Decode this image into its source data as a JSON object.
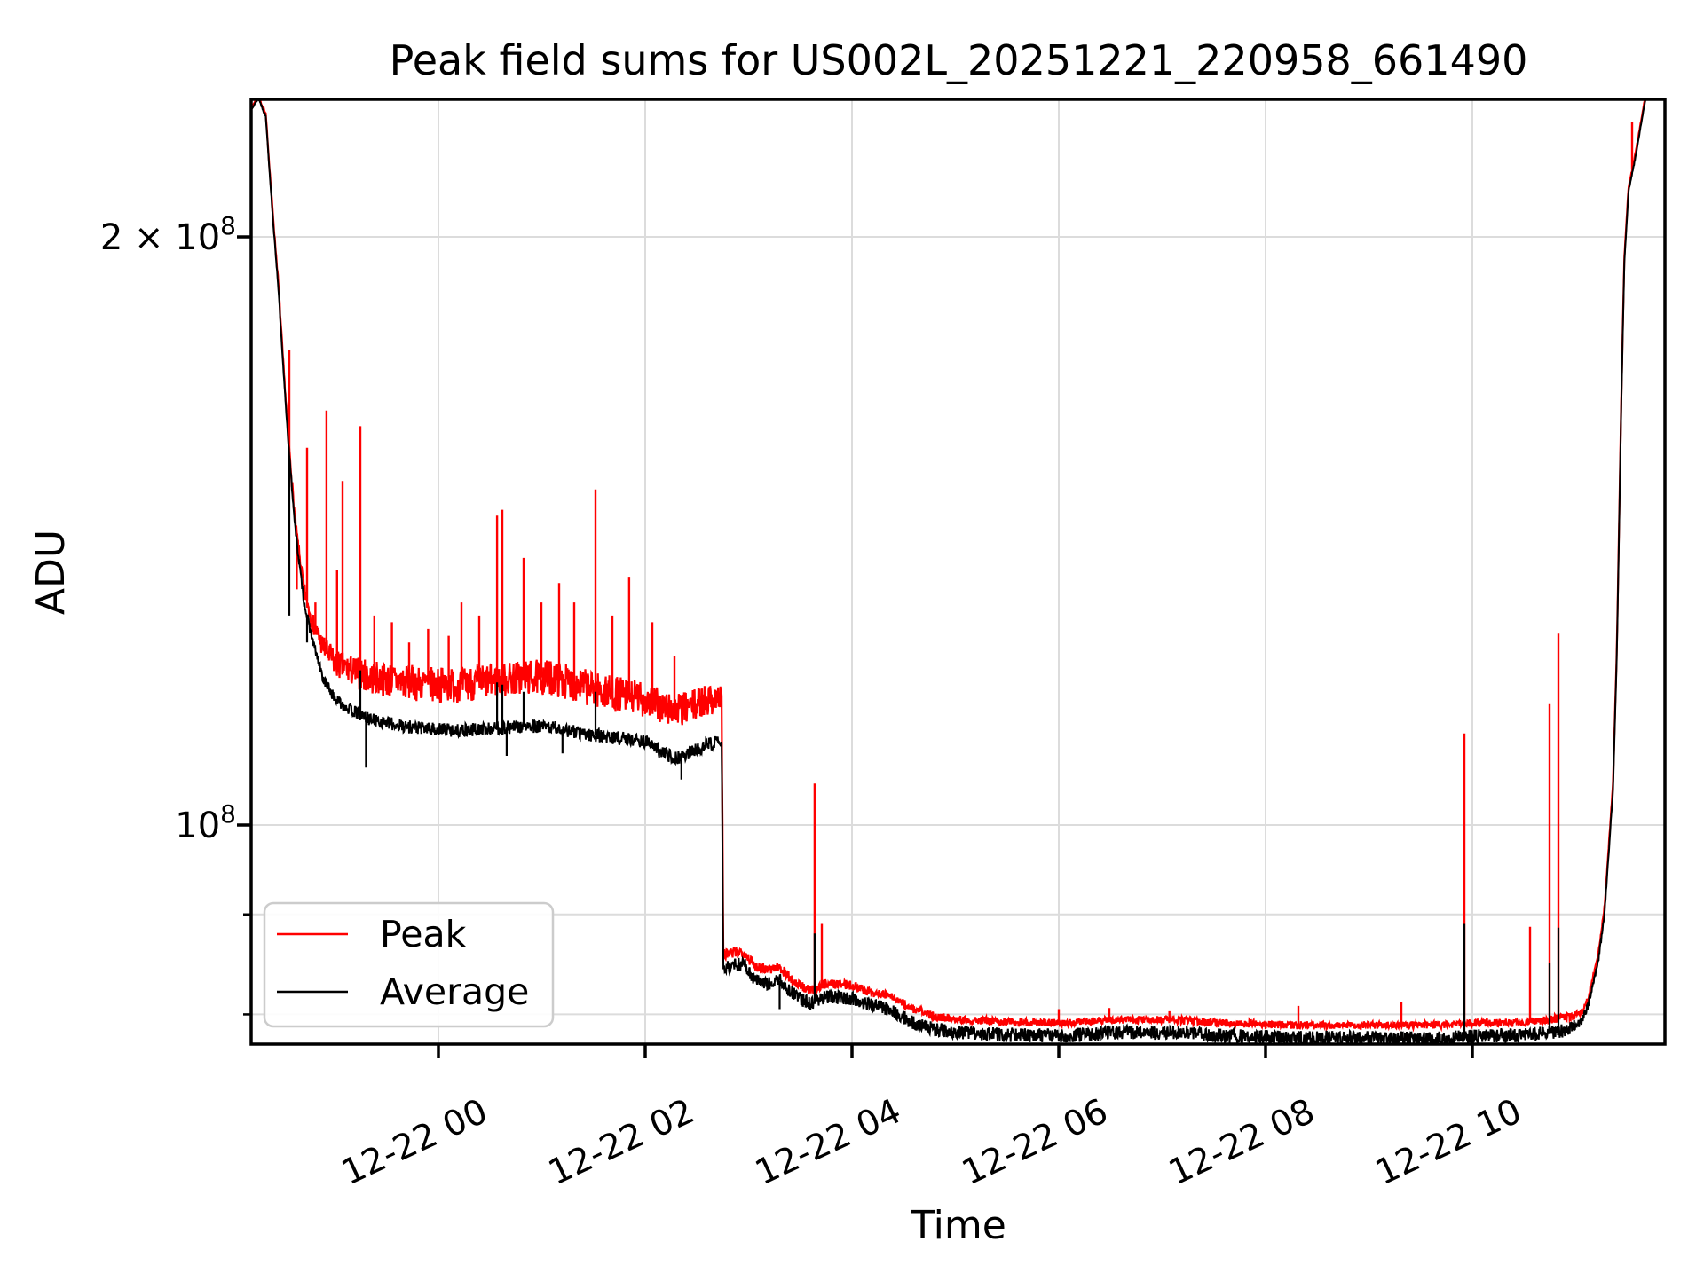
{
  "chart_data": {
    "type": "line",
    "title": "Peak field sums for US002L_20251221_220958_661490",
    "xlabel": "Time",
    "ylabel": "ADU",
    "grid": true,
    "y_axis": {
      "scale": "log",
      "ylim": [
        77200000.0,
        235000000.0
      ],
      "major_ticks": [
        {
          "value": 200000000.0,
          "base": "2 × 10",
          "exp": "8"
        },
        {
          "value": 100000000.0,
          "base": "10",
          "exp": "8"
        }
      ],
      "minor_tick_values": [
        90000000.0,
        80000000.0
      ]
    },
    "x_axis": {
      "unit": "hours relative to 2025-12-22 00:00",
      "xlim_hours": [
        -1.811,
        11.863
      ],
      "ticks": [
        {
          "t": 0,
          "label": "12-22 00"
        },
        {
          "t": 2,
          "label": "12-22 02"
        },
        {
          "t": 4,
          "label": "12-22 04"
        },
        {
          "t": 6,
          "label": "12-22 06"
        },
        {
          "t": 8,
          "label": "12-22 08"
        },
        {
          "t": 10,
          "label": "12-22 10"
        }
      ]
    },
    "legend": {
      "location": "lower left",
      "entries": [
        "Peak",
        "Average"
      ]
    },
    "series": [
      {
        "name": "Peak",
        "color": "#ff0000",
        "anchors_t_value": [
          [
            -1.81,
            233000000.0
          ],
          [
            -1.74,
            236000000.0
          ],
          [
            -1.67,
            231000000.0
          ],
          [
            -1.6,
            205000000.0
          ],
          [
            -1.55,
            190000000.0
          ],
          [
            -1.5,
            172000000.0
          ],
          [
            -1.44,
            155000000.0
          ],
          [
            -1.38,
            142000000.0
          ],
          [
            -1.3,
            132000000.0
          ],
          [
            -1.22,
            127000000.0
          ],
          [
            -1.12,
            123500000.0
          ],
          [
            -1.0,
            121000000.0
          ],
          [
            -0.85,
            120000000.0
          ],
          [
            -0.65,
            119000000.0
          ],
          [
            -0.4,
            118500000.0
          ],
          [
            -0.1,
            118000000.0
          ],
          [
            0.2,
            118000000.0
          ],
          [
            0.5,
            118500000.0
          ],
          [
            0.8,
            119000000.0
          ],
          [
            1.1,
            119000000.0
          ],
          [
            1.35,
            118000000.0
          ],
          [
            1.6,
            117000000.0
          ],
          [
            1.8,
            116500000.0
          ],
          [
            2.0,
            116000000.0
          ],
          [
            2.15,
            115000000.0
          ],
          [
            2.3,
            114500000.0
          ],
          [
            2.45,
            115000000.0
          ],
          [
            2.6,
            116000000.0
          ],
          [
            2.74,
            116200000.0
          ],
          [
            2.755,
            85800000.0
          ],
          [
            2.95,
            86200000.0
          ],
          [
            3.05,
            84800000.0
          ],
          [
            3.18,
            84400000.0
          ],
          [
            3.3,
            84600000.0
          ],
          [
            3.45,
            83000000.0
          ],
          [
            3.6,
            82200000.0
          ],
          [
            3.75,
            83000000.0
          ],
          [
            4.0,
            82800000.0
          ],
          [
            4.15,
            82200000.0
          ],
          [
            4.35,
            81800000.0
          ],
          [
            4.6,
            80500000.0
          ],
          [
            4.8,
            79800000.0
          ],
          [
            5.1,
            79500000.0
          ],
          [
            5.5,
            79300000.0
          ],
          [
            6.0,
            79200000.0
          ],
          [
            6.6,
            79500000.0
          ],
          [
            7.1,
            79500000.0
          ],
          [
            7.6,
            79200000.0
          ],
          [
            8.3,
            79000000.0
          ],
          [
            9.0,
            79000000.0
          ],
          [
            9.6,
            79000000.0
          ],
          [
            10.1,
            79200000.0
          ],
          [
            10.55,
            79300000.0
          ],
          [
            10.9,
            79700000.0
          ],
          [
            11.05,
            80100000.0
          ],
          [
            11.12,
            81500000.0
          ],
          [
            11.22,
            86000000.0
          ],
          [
            11.28,
            91000000.0
          ],
          [
            11.34,
            101200000.0
          ],
          [
            11.36,
            104800000.0
          ],
          [
            11.4,
            124800000.0
          ],
          [
            11.44,
            165000000.0
          ],
          [
            11.47,
            195000000.0
          ],
          [
            11.51,
            212000000.0
          ],
          [
            11.58,
            221000000.0
          ],
          [
            11.66,
            234000000.0
          ],
          [
            11.72,
            243000000.0
          ]
        ],
        "noise_frac_t": [
          [
            -1.81,
            0.001
          ],
          [
            -1.6,
            0.002
          ],
          [
            -1.35,
            0.008
          ],
          [
            -1.1,
            0.015
          ],
          [
            -0.8,
            0.019
          ],
          [
            -0.4,
            0.021
          ],
          [
            2.0,
            0.021
          ],
          [
            2.6,
            0.019
          ],
          [
            2.74,
            0.018
          ],
          [
            2.78,
            0.007
          ],
          [
            3.5,
            0.006
          ],
          [
            4.5,
            0.005
          ],
          [
            5.5,
            0.0045
          ],
          [
            10.5,
            0.0045
          ],
          [
            10.9,
            0.005
          ],
          [
            11.15,
            0.003
          ],
          [
            11.35,
            0.0015
          ],
          [
            11.72,
            0.001
          ]
        ],
        "spikes_t_value": [
          [
            -1.442,
            175000000.0
          ],
          [
            -1.37,
            132000000.0
          ],
          [
            -1.27,
            156000000.0
          ],
          [
            -1.19,
            130000000.0
          ],
          [
            -1.082,
            163000000.0
          ],
          [
            -0.98,
            135000000.0
          ],
          [
            -0.927,
            150000000.0
          ],
          [
            -0.755,
            160000000.0
          ],
          [
            -0.62,
            128000000.0
          ],
          [
            -0.45,
            127000000.0
          ],
          [
            -0.283,
            124000000.0
          ],
          [
            -0.1,
            126000000.0
          ],
          [
            0.1,
            125000000.0
          ],
          [
            0.223,
            130000000.0
          ],
          [
            0.395,
            128000000.0
          ],
          [
            0.567,
            144000000.0
          ],
          [
            0.618,
            145000000.0
          ],
          [
            0.824,
            137000000.0
          ],
          [
            0.996,
            130000000.0
          ],
          [
            1.167,
            133000000.0
          ],
          [
            1.313,
            130000000.0
          ],
          [
            1.519,
            148500000.0
          ],
          [
            1.682,
            128000000.0
          ],
          [
            1.845,
            134000000.0
          ],
          [
            2.069,
            127000000.0
          ],
          [
            2.283,
            122000000.0
          ],
          [
            3.639,
            105000000.0
          ],
          [
            3.708,
            89000000.0
          ],
          [
            6.0,
            80500000.0
          ],
          [
            6.489,
            80600000.0
          ],
          [
            7.07,
            80300000.0
          ],
          [
            8.318,
            80800000.0
          ],
          [
            9.313,
            81200000.0
          ],
          [
            9.923,
            111400000.0
          ],
          [
            10.558,
            88700000.0
          ],
          [
            10.747,
            115300000.0
          ],
          [
            10.833,
            125300000.0
          ],
          [
            11.545,
            229000000.0
          ]
        ]
      },
      {
        "name": "Average",
        "color": "#000000",
        "anchors_t_value": [
          [
            -1.81,
            232500000.0
          ],
          [
            -1.74,
            235500000.0
          ],
          [
            -1.67,
            230500000.0
          ],
          [
            -1.6,
            204000000.0
          ],
          [
            -1.55,
            189000000.0
          ],
          [
            -1.5,
            171000000.0
          ],
          [
            -1.44,
            154000000.0
          ],
          [
            -1.38,
            141000000.0
          ],
          [
            -1.3,
            130000000.0
          ],
          [
            -1.22,
            124500000.0
          ],
          [
            -1.12,
            119000000.0
          ],
          [
            -1.0,
            116000000.0
          ],
          [
            -0.85,
            114500000.0
          ],
          [
            -0.65,
            113200000.0
          ],
          [
            -0.4,
            112500000.0
          ],
          [
            -0.1,
            112000000.0
          ],
          [
            0.2,
            111800000.0
          ],
          [
            0.5,
            112000000.0
          ],
          [
            0.8,
            112300000.0
          ],
          [
            1.1,
            112200000.0
          ],
          [
            1.35,
            111500000.0
          ],
          [
            1.6,
            111000000.0
          ],
          [
            1.8,
            110700000.0
          ],
          [
            2.0,
            110400000.0
          ],
          [
            2.15,
            109000000.0
          ],
          [
            2.3,
            108200000.0
          ],
          [
            2.45,
            109000000.0
          ],
          [
            2.6,
            110000000.0
          ],
          [
            2.74,
            110300000.0
          ],
          [
            2.755,
            84400000.0
          ],
          [
            2.95,
            85000000.0
          ],
          [
            3.05,
            83500000.0
          ],
          [
            3.18,
            83000000.0
          ],
          [
            3.3,
            83200000.0
          ],
          [
            3.45,
            81800000.0
          ],
          [
            3.6,
            81000000.0
          ],
          [
            3.75,
            81700000.0
          ],
          [
            4.0,
            81500000.0
          ],
          [
            4.15,
            81000000.0
          ],
          [
            4.35,
            80500000.0
          ],
          [
            4.6,
            79200000.0
          ],
          [
            4.8,
            78600000.0
          ],
          [
            5.1,
            78300000.0
          ],
          [
            5.5,
            78100000.0
          ],
          [
            6.0,
            78000000.0
          ],
          [
            6.6,
            78300000.0
          ],
          [
            7.1,
            78300000.0
          ],
          [
            7.6,
            78000000.0
          ],
          [
            8.3,
            77800000.0
          ],
          [
            9.0,
            77800000.0
          ],
          [
            9.6,
            77700000.0
          ],
          [
            10.1,
            78000000.0
          ],
          [
            10.55,
            78100000.0
          ],
          [
            10.9,
            78500000.0
          ],
          [
            11.05,
            79300000.0
          ],
          [
            11.12,
            80800000.0
          ],
          [
            11.22,
            85300000.0
          ],
          [
            11.28,
            90300000.0
          ],
          [
            11.34,
            100500000.0
          ],
          [
            11.36,
            104000000.0
          ],
          [
            11.4,
            124000000.0
          ],
          [
            11.44,
            164000000.0
          ],
          [
            11.47,
            194000000.0
          ],
          [
            11.51,
            211000000.0
          ],
          [
            11.58,
            220000000.0
          ],
          [
            11.66,
            233000000.0
          ],
          [
            11.72,
            242000000.0
          ]
        ],
        "noise_frac_t": [
          [
            -1.81,
            0.0008
          ],
          [
            -1.6,
            0.0015
          ],
          [
            -1.35,
            0.004
          ],
          [
            -1.1,
            0.006
          ],
          [
            -0.8,
            0.0075
          ],
          [
            -0.4,
            0.008
          ],
          [
            2.0,
            0.008
          ],
          [
            2.74,
            0.008
          ],
          [
            2.78,
            0.008
          ],
          [
            3.5,
            0.008
          ],
          [
            4.5,
            0.008
          ],
          [
            5.5,
            0.0085
          ],
          [
            10.5,
            0.0085
          ],
          [
            10.9,
            0.008
          ],
          [
            11.15,
            0.004
          ],
          [
            11.35,
            0.0015
          ],
          [
            11.72,
            0.0008
          ]
        ],
        "spikes_t_value": [
          [
            -1.442,
            128000000.0
          ],
          [
            -1.27,
            124000000.0
          ],
          [
            -0.755,
            120000000.0
          ],
          [
            -0.7,
            107000000.0
          ],
          [
            0.567,
            118300000.0
          ],
          [
            0.618,
            118000000.0
          ],
          [
            0.66,
            108500000.0
          ],
          [
            0.824,
            117000000.0
          ],
          [
            1.2,
            108800000.0
          ],
          [
            1.519,
            117000000.0
          ],
          [
            2.35,
            105500000.0
          ],
          [
            3.3,
            80500000.0
          ],
          [
            3.639,
            88000000.0
          ],
          [
            9.923,
            89000000.0
          ],
          [
            10.747,
            85000000.0
          ],
          [
            10.833,
            88600000.0
          ]
        ]
      }
    ]
  }
}
